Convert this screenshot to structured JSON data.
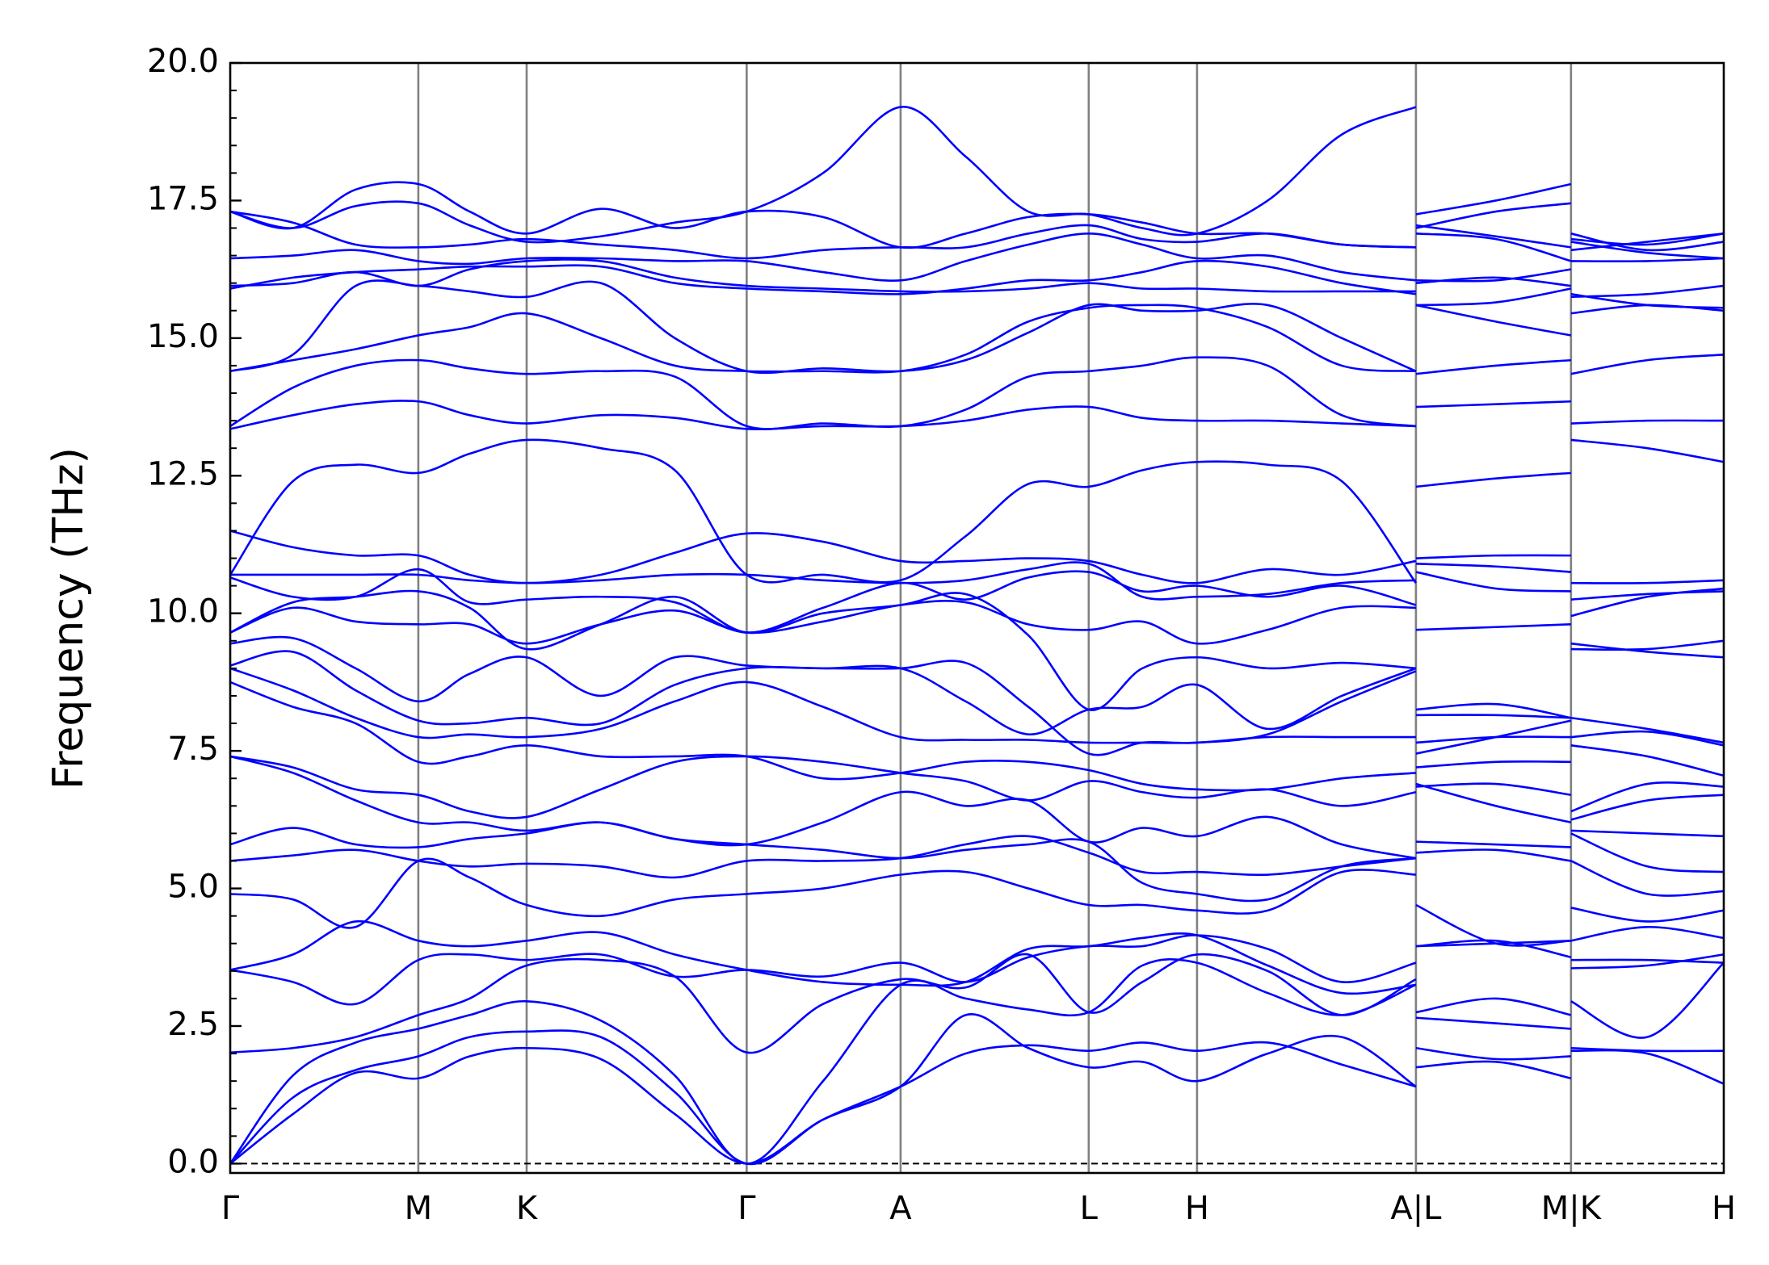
{
  "chart_data": {
    "type": "line",
    "ylabel": "Frequency (THz)",
    "color": "#0000ff",
    "grid": false,
    "xlim": [
      0,
      13.1
    ],
    "ylim": [
      -0.17,
      20
    ],
    "yticks": [
      {
        "value": 0,
        "label": "0.0"
      },
      {
        "value": 2.5,
        "label": "2.5"
      },
      {
        "value": 5,
        "label": "5.0"
      },
      {
        "value": 7.5,
        "label": "7.5"
      },
      {
        "value": 10,
        "label": "10.0"
      },
      {
        "value": 12.5,
        "label": "12.5"
      },
      {
        "value": 15,
        "label": "15.0"
      },
      {
        "value": 17.5,
        "label": "17.5"
      },
      {
        "value": 20,
        "label": "20.0"
      }
    ],
    "yminorticks": [
      0.5,
      1,
      1.5,
      2,
      3,
      3.5,
      4,
      4.5,
      5.5,
      6,
      6.5,
      7,
      8,
      8.5,
      9,
      9.5,
      10.5,
      11,
      11.5,
      12,
      13,
      13.5,
      14,
      14.5,
      15.5,
      16,
      16.5,
      17,
      18,
      18.5,
      19,
      19.5
    ],
    "xticks": [
      {
        "value": 0,
        "label": "Γ"
      },
      {
        "value": 1.65,
        "label": "M"
      },
      {
        "value": 2.6,
        "label": "K"
      },
      {
        "value": 4.53,
        "label": "Γ"
      },
      {
        "value": 5.88,
        "label": "A"
      },
      {
        "value": 7.53,
        "label": "L"
      },
      {
        "value": 8.48,
        "label": "H"
      },
      {
        "value": 10.4,
        "label": "A|L"
      },
      {
        "value": 11.76,
        "label": "M|K"
      },
      {
        "value": 13.1,
        "label": "H"
      }
    ],
    "hlines": [
      0
    ],
    "x": [
      0,
      0.55,
      1.1,
      1.65,
      2.1,
      2.6,
      3.25,
      3.9,
      4.53,
      5.2,
      5.88,
      6.45,
      7.0,
      7.53,
      8.0,
      8.48,
      9.1,
      9.75,
      10.4,
      10.4,
      10.4,
      11.1,
      11.76,
      11.76,
      11.76,
      12.43,
      13.1
    ],
    "series": [
      {
        "values": [
          0,
          0.9,
          1.65,
          1.55,
          1.95,
          2.1,
          1.9,
          0.9,
          0,
          0.8,
          1.4,
          2.7,
          2.1,
          1.75,
          1.85,
          1.5,
          2.0,
          2.3,
          1.4,
          null,
          1.75,
          1.85,
          1.55,
          null,
          2.05,
          2.0,
          1.45
        ]
      },
      {
        "values": [
          0,
          1.2,
          1.7,
          1.95,
          2.3,
          2.4,
          2.3,
          1.3,
          0,
          0.8,
          1.4,
          2.0,
          2.15,
          2.05,
          2.2,
          2.05,
          2.2,
          1.8,
          1.4,
          null,
          2.1,
          1.9,
          1.95,
          null,
          2.1,
          2.05,
          2.05
        ]
      },
      {
        "values": [
          0,
          1.6,
          2.2,
          2.45,
          2.7,
          2.95,
          2.6,
          1.6,
          0,
          1.5,
          3.25,
          3.0,
          2.8,
          2.75,
          3.6,
          3.65,
          3.1,
          2.7,
          3.25,
          null,
          2.65,
          2.55,
          2.45,
          null,
          2.95,
          2.3,
          3.65
        ]
      },
      {
        "values": [
          2.02,
          2.1,
          2.3,
          2.7,
          3.0,
          3.6,
          3.7,
          3.4,
          2.02,
          2.9,
          3.35,
          3.2,
          3.8,
          2.75,
          3.3,
          3.8,
          3.5,
          2.7,
          3.35,
          null,
          2.75,
          3.0,
          2.7,
          null,
          3.55,
          3.6,
          3.8
        ]
      },
      {
        "values": [
          3.52,
          3.3,
          2.9,
          3.7,
          3.8,
          3.7,
          3.8,
          3.4,
          3.52,
          3.4,
          3.65,
          3.3,
          3.75,
          3.95,
          3.95,
          4.15,
          3.9,
          3.3,
          3.65,
          null,
          3.95,
          4.05,
          3.75,
          null,
          3.7,
          3.7,
          3.65
        ]
      },
      {
        "values": [
          3.52,
          3.8,
          4.4,
          4.05,
          3.95,
          4.05,
          4.2,
          3.8,
          3.52,
          3.3,
          3.25,
          3.3,
          3.9,
          3.95,
          4.1,
          4.15,
          3.6,
          3.1,
          3.25,
          null,
          3.95,
          4.0,
          4.05,
          null,
          4.05,
          4.3,
          4.1
        ]
      },
      {
        "values": [
          4.9,
          4.8,
          4.3,
          5.5,
          5.2,
          4.7,
          4.5,
          4.8,
          4.9,
          5.0,
          5.25,
          5.3,
          5.0,
          4.7,
          4.7,
          4.6,
          4.6,
          5.3,
          5.25,
          null,
          4.7,
          4.0,
          4.05,
          null,
          4.65,
          4.4,
          4.6
        ]
      },
      {
        "values": [
          5.5,
          5.6,
          5.7,
          5.5,
          5.4,
          5.45,
          5.4,
          5.2,
          5.5,
          5.5,
          5.55,
          5.8,
          5.95,
          5.65,
          5.3,
          5.3,
          5.25,
          5.4,
          5.55,
          null,
          5.65,
          5.7,
          5.5,
          null,
          5.5,
          4.9,
          4.95
        ]
      },
      {
        "values": [
          5.8,
          6.1,
          5.8,
          5.75,
          5.9,
          6.0,
          6.2,
          5.9,
          5.8,
          5.7,
          5.55,
          5.7,
          5.8,
          5.85,
          5.1,
          4.9,
          4.8,
          5.4,
          5.55,
          null,
          5.85,
          5.8,
          5.75,
          null,
          6.0,
          5.4,
          5.3
        ]
      },
      {
        "values": [
          7.4,
          7.1,
          6.6,
          6.2,
          6.2,
          6.05,
          6.2,
          5.9,
          5.8,
          6.2,
          6.75,
          6.5,
          6.6,
          5.85,
          6.1,
          5.95,
          6.3,
          5.8,
          5.55,
          null,
          6.85,
          6.9,
          6.7,
          null,
          6.05,
          6.0,
          5.95
        ]
      },
      {
        "values": [
          7.4,
          7.2,
          6.8,
          6.7,
          6.4,
          6.3,
          6.8,
          7.3,
          7.4,
          7.3,
          7.1,
          6.95,
          6.6,
          6.95,
          6.75,
          6.65,
          6.8,
          6.5,
          6.75,
          null,
          6.9,
          6.5,
          6.2,
          null,
          6.25,
          6.6,
          6.7
        ]
      },
      {
        "values": [
          8.75,
          8.3,
          8.0,
          7.3,
          7.4,
          7.6,
          7.4,
          7.4,
          7.4,
          7.0,
          7.1,
          7.3,
          7.3,
          7.15,
          6.9,
          6.8,
          6.8,
          7.0,
          7.1,
          null,
          7.2,
          7.3,
          7.3,
          null,
          6.4,
          6.9,
          6.85
        ]
      },
      {
        "values": [
          9.0,
          8.6,
          8.1,
          7.75,
          7.8,
          7.75,
          7.9,
          8.4,
          8.75,
          8.3,
          7.75,
          7.7,
          7.7,
          7.65,
          7.65,
          7.65,
          7.75,
          7.75,
          7.75,
          null,
          7.65,
          7.75,
          7.75,
          null,
          7.6,
          7.4,
          7.05
        ]
      },
      {
        "values": [
          9.05,
          9.3,
          8.6,
          8.05,
          8.0,
          8.1,
          8.0,
          8.7,
          9.0,
          9.0,
          9.0,
          9.1,
          8.3,
          7.45,
          7.65,
          7.65,
          7.8,
          8.4,
          8.95,
          null,
          7.45,
          7.75,
          8.05,
          null,
          7.75,
          7.85,
          7.6
        ]
      },
      {
        "values": [
          9.45,
          9.55,
          9.0,
          8.4,
          8.9,
          9.2,
          8.5,
          9.2,
          9.05,
          9.0,
          9.0,
          8.4,
          7.8,
          8.25,
          8.3,
          8.7,
          7.9,
          8.5,
          9.0,
          null,
          8.25,
          8.35,
          8.1,
          null,
          8.1,
          7.9,
          7.65
        ]
      },
      {
        "values": [
          9.65,
          10.1,
          9.85,
          9.8,
          9.8,
          9.45,
          9.8,
          10.05,
          9.65,
          9.85,
          10.15,
          10.2,
          9.8,
          9.7,
          9.85,
          9.45,
          9.7,
          10.1,
          10.1,
          null,
          9.7,
          9.75,
          9.8,
          null,
          9.45,
          9.3,
          9.2
        ]
      },
      {
        "values": [
          9.65,
          10.2,
          10.3,
          10.4,
          10.1,
          9.35,
          9.8,
          10.3,
          9.65,
          10.0,
          10.15,
          10.35,
          9.6,
          8.25,
          9.0,
          9.2,
          9.0,
          9.1,
          9.0,
          null,
          8.15,
          8.15,
          8.1,
          null,
          9.35,
          9.35,
          9.5
        ]
      },
      {
        "values": [
          10.65,
          10.3,
          10.3,
          10.8,
          10.2,
          10.25,
          10.3,
          10.2,
          9.65,
          10.1,
          10.55,
          10.25,
          10.65,
          10.75,
          10.4,
          10.5,
          10.3,
          10.5,
          10.15,
          null,
          10.75,
          10.45,
          10.4,
          null,
          10.25,
          10.35,
          10.4
        ]
      },
      {
        "values": [
          10.7,
          10.7,
          10.7,
          10.7,
          10.6,
          10.55,
          10.6,
          10.7,
          10.7,
          10.6,
          10.55,
          10.6,
          10.8,
          10.9,
          10.3,
          10.3,
          10.35,
          10.55,
          10.6,
          null,
          10.9,
          10.85,
          10.75,
          null,
          10.55,
          10.55,
          10.6
        ]
      },
      {
        "values": [
          11.5,
          11.2,
          11.05,
          11.05,
          10.7,
          10.55,
          10.7,
          11.1,
          11.45,
          11.3,
          10.95,
          10.95,
          11.0,
          10.95,
          10.7,
          10.55,
          10.8,
          10.7,
          10.95,
          null,
          11.0,
          11.05,
          11.05,
          null,
          9.95,
          10.3,
          10.45
        ]
      },
      {
        "values": [
          10.7,
          12.4,
          12.7,
          12.55,
          12.9,
          13.15,
          13.0,
          12.6,
          10.7,
          10.7,
          10.6,
          11.4,
          12.35,
          12.3,
          12.6,
          12.75,
          12.7,
          12.4,
          10.55,
          null,
          12.3,
          12.45,
          12.55,
          null,
          13.15,
          13.0,
          12.75
        ]
      },
      {
        "values": [
          13.35,
          13.6,
          13.8,
          13.85,
          13.6,
          13.45,
          13.6,
          13.55,
          13.35,
          13.4,
          13.4,
          13.5,
          13.7,
          13.75,
          13.55,
          13.5,
          13.5,
          13.45,
          13.4,
          null,
          13.75,
          13.8,
          13.85,
          null,
          13.45,
          13.5,
          13.5
        ]
      },
      {
        "values": [
          13.4,
          14.1,
          14.5,
          14.6,
          14.45,
          14.35,
          14.4,
          14.3,
          13.4,
          13.45,
          13.4,
          13.7,
          14.3,
          14.4,
          14.5,
          14.65,
          14.5,
          13.6,
          13.4,
          null,
          14.35,
          14.5,
          14.6,
          null,
          14.35,
          14.6,
          14.7
        ]
      },
      {
        "values": [
          14.4,
          14.6,
          14.8,
          15.05,
          15.2,
          15.45,
          15.0,
          14.5,
          14.4,
          14.4,
          14.4,
          14.7,
          15.3,
          15.55,
          15.6,
          15.55,
          15.2,
          14.5,
          14.4,
          null,
          15.6,
          15.3,
          15.05,
          null,
          15.45,
          15.6,
          15.5
        ]
      },
      {
        "values": [
          14.4,
          14.7,
          15.95,
          15.95,
          15.85,
          15.75,
          16.0,
          15.0,
          14.4,
          14.45,
          14.4,
          14.6,
          15.1,
          15.6,
          15.5,
          15.5,
          15.6,
          15.0,
          14.4,
          null,
          15.6,
          15.65,
          15.9,
          null,
          15.8,
          15.6,
          15.55
        ]
      },
      {
        "values": [
          15.9,
          16.1,
          16.2,
          16.25,
          16.3,
          16.3,
          16.3,
          16.0,
          15.9,
          15.85,
          15.8,
          15.9,
          16.05,
          16.05,
          16.2,
          16.4,
          16.3,
          16.0,
          15.8,
          null,
          16.05,
          16.05,
          16.25,
          null,
          15.75,
          15.8,
          15.95
        ]
      },
      {
        "values": [
          15.95,
          16.0,
          16.2,
          15.95,
          16.25,
          16.4,
          16.4,
          16.1,
          15.95,
          15.9,
          15.85,
          15.85,
          15.9,
          16.0,
          15.9,
          15.9,
          15.85,
          15.85,
          15.85,
          null,
          16.0,
          16.1,
          15.95,
          null,
          16.4,
          16.4,
          16.45
        ]
      },
      {
        "values": [
          16.45,
          16.5,
          16.6,
          16.4,
          16.35,
          16.45,
          16.45,
          16.4,
          16.4,
          16.2,
          16.05,
          16.4,
          16.7,
          16.9,
          16.7,
          16.45,
          16.5,
          16.2,
          16.05,
          null,
          16.9,
          16.8,
          16.4,
          null,
          16.9,
          16.6,
          16.75
        ]
      },
      {
        "values": [
          17.3,
          17.1,
          16.7,
          16.65,
          16.7,
          16.8,
          16.7,
          16.6,
          16.45,
          16.6,
          16.65,
          16.65,
          16.9,
          17.05,
          16.8,
          16.75,
          16.9,
          16.7,
          16.65,
          null,
          17.05,
          16.85,
          16.65,
          null,
          16.75,
          16.55,
          16.45
        ]
      },
      {
        "values": [
          17.3,
          17.0,
          17.4,
          17.45,
          17.05,
          16.75,
          16.85,
          17.1,
          17.3,
          18.0,
          19.2,
          18.3,
          17.3,
          17.25,
          17.0,
          16.9,
          17.5,
          18.7,
          19.2,
          null,
          17.25,
          17.5,
          17.8,
          null,
          16.8,
          16.7,
          16.9
        ]
      },
      {
        "values": [
          17.3,
          17.0,
          17.7,
          17.8,
          17.3,
          16.9,
          17.35,
          17.0,
          17.3,
          17.2,
          16.65,
          16.9,
          17.2,
          17.25,
          17.1,
          16.9,
          16.9,
          16.7,
          16.65,
          null,
          17.0,
          17.3,
          17.45,
          null,
          16.6,
          16.75,
          16.9
        ]
      }
    ]
  }
}
